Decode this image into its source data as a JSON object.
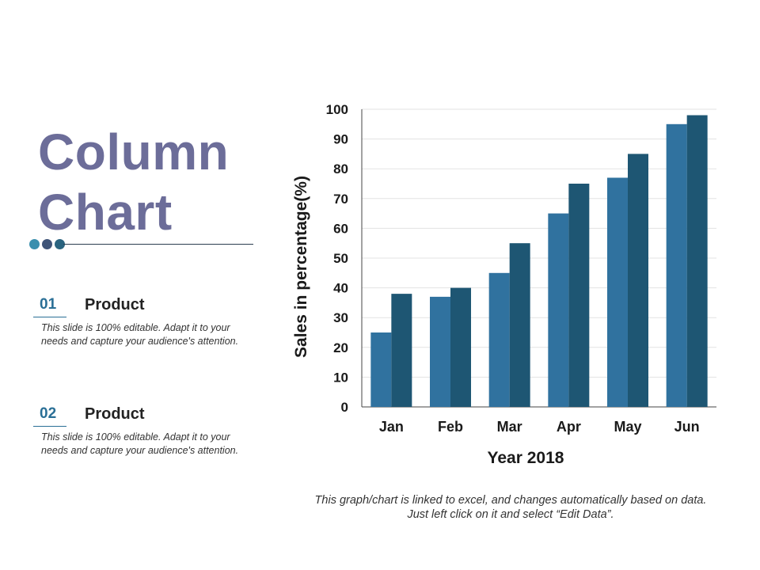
{
  "slide": {
    "title_line1": "Column",
    "title_line2": "Chart",
    "dot_colors": [
      "#3a8fae",
      "#3f5478",
      "#2a6480"
    ],
    "items": [
      {
        "number": "01",
        "title": "Product",
        "description": "This slide is 100% editable. Adapt it to your needs and capture your audience's attention."
      },
      {
        "number": "02",
        "title": "Product",
        "description": "This slide is 100% editable. Adapt it to your needs and capture your audience's attention."
      }
    ],
    "footnote": "This graph/chart is linked to excel, and changes automatically based on data. Just left click on it and select “Edit Data”."
  },
  "chart_data": {
    "type": "bar",
    "categories": [
      "Jan",
      "Feb",
      "Mar",
      "Apr",
      "May",
      "Jun"
    ],
    "series": [
      {
        "values": [
          25,
          37,
          45,
          65,
          77,
          95
        ],
        "color": "#30729f"
      },
      {
        "values": [
          38,
          40,
          55,
          75,
          85,
          98
        ],
        "color": "#1e5673"
      }
    ],
    "xlabel": "Year 2018",
    "ylabel": "Sales in percentage(%)",
    "ylim": [
      0,
      100
    ],
    "yticks": [
      0,
      10,
      20,
      30,
      40,
      50,
      60,
      70,
      80,
      90,
      100
    ],
    "grid": true
  }
}
